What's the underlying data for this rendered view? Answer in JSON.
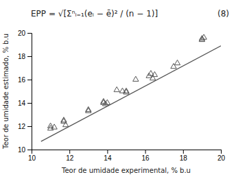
{
  "chart_data": {
    "type": "scatter",
    "title": "EPP = √[Σⁿᵢ₌₁(eᵢ − ē)² / (n − 1)]",
    "annotations": [
      "(8)"
    ],
    "xlabel": "Teor de umidade experimental, % b.u",
    "ylabel": "Teor de umidade estimado, % b.u",
    "series": [
      {
        "type": "scatter",
        "marker": "open-triangle",
        "color": "#555555",
        "x": [
          11.0,
          11.0,
          11.2,
          11.7,
          11.7,
          11.8,
          13.0,
          13.0,
          13.8,
          13.8,
          13.9,
          14.0,
          14.5,
          14.8,
          15.0,
          15.0,
          15.5,
          16.2,
          16.3,
          16.4,
          16.5,
          17.5,
          17.7,
          19.0,
          19.0,
          19.1
        ],
        "values": [
          12.0,
          11.8,
          11.9,
          12.4,
          12.5,
          12.1,
          13.3,
          13.4,
          14.0,
          14.1,
          13.9,
          14.0,
          15.1,
          15.0,
          14.9,
          15.0,
          16.0,
          16.3,
          16.5,
          16.1,
          16.4,
          17.1,
          17.4,
          19.5,
          19.4,
          19.6
        ]
      },
      {
        "type": "line",
        "line_style": "solid",
        "color": "#555555",
        "x": [
          10.5,
          20.0
        ],
        "values": [
          10.7,
          18.9
        ]
      }
    ],
    "xlim": [
      10,
      20
    ],
    "ylim": [
      10,
      20
    ],
    "xticks": [
      10,
      12,
      14,
      16,
      18,
      20
    ],
    "yticks": [
      10,
      12,
      14,
      16,
      18,
      20
    ],
    "grid": false
  }
}
